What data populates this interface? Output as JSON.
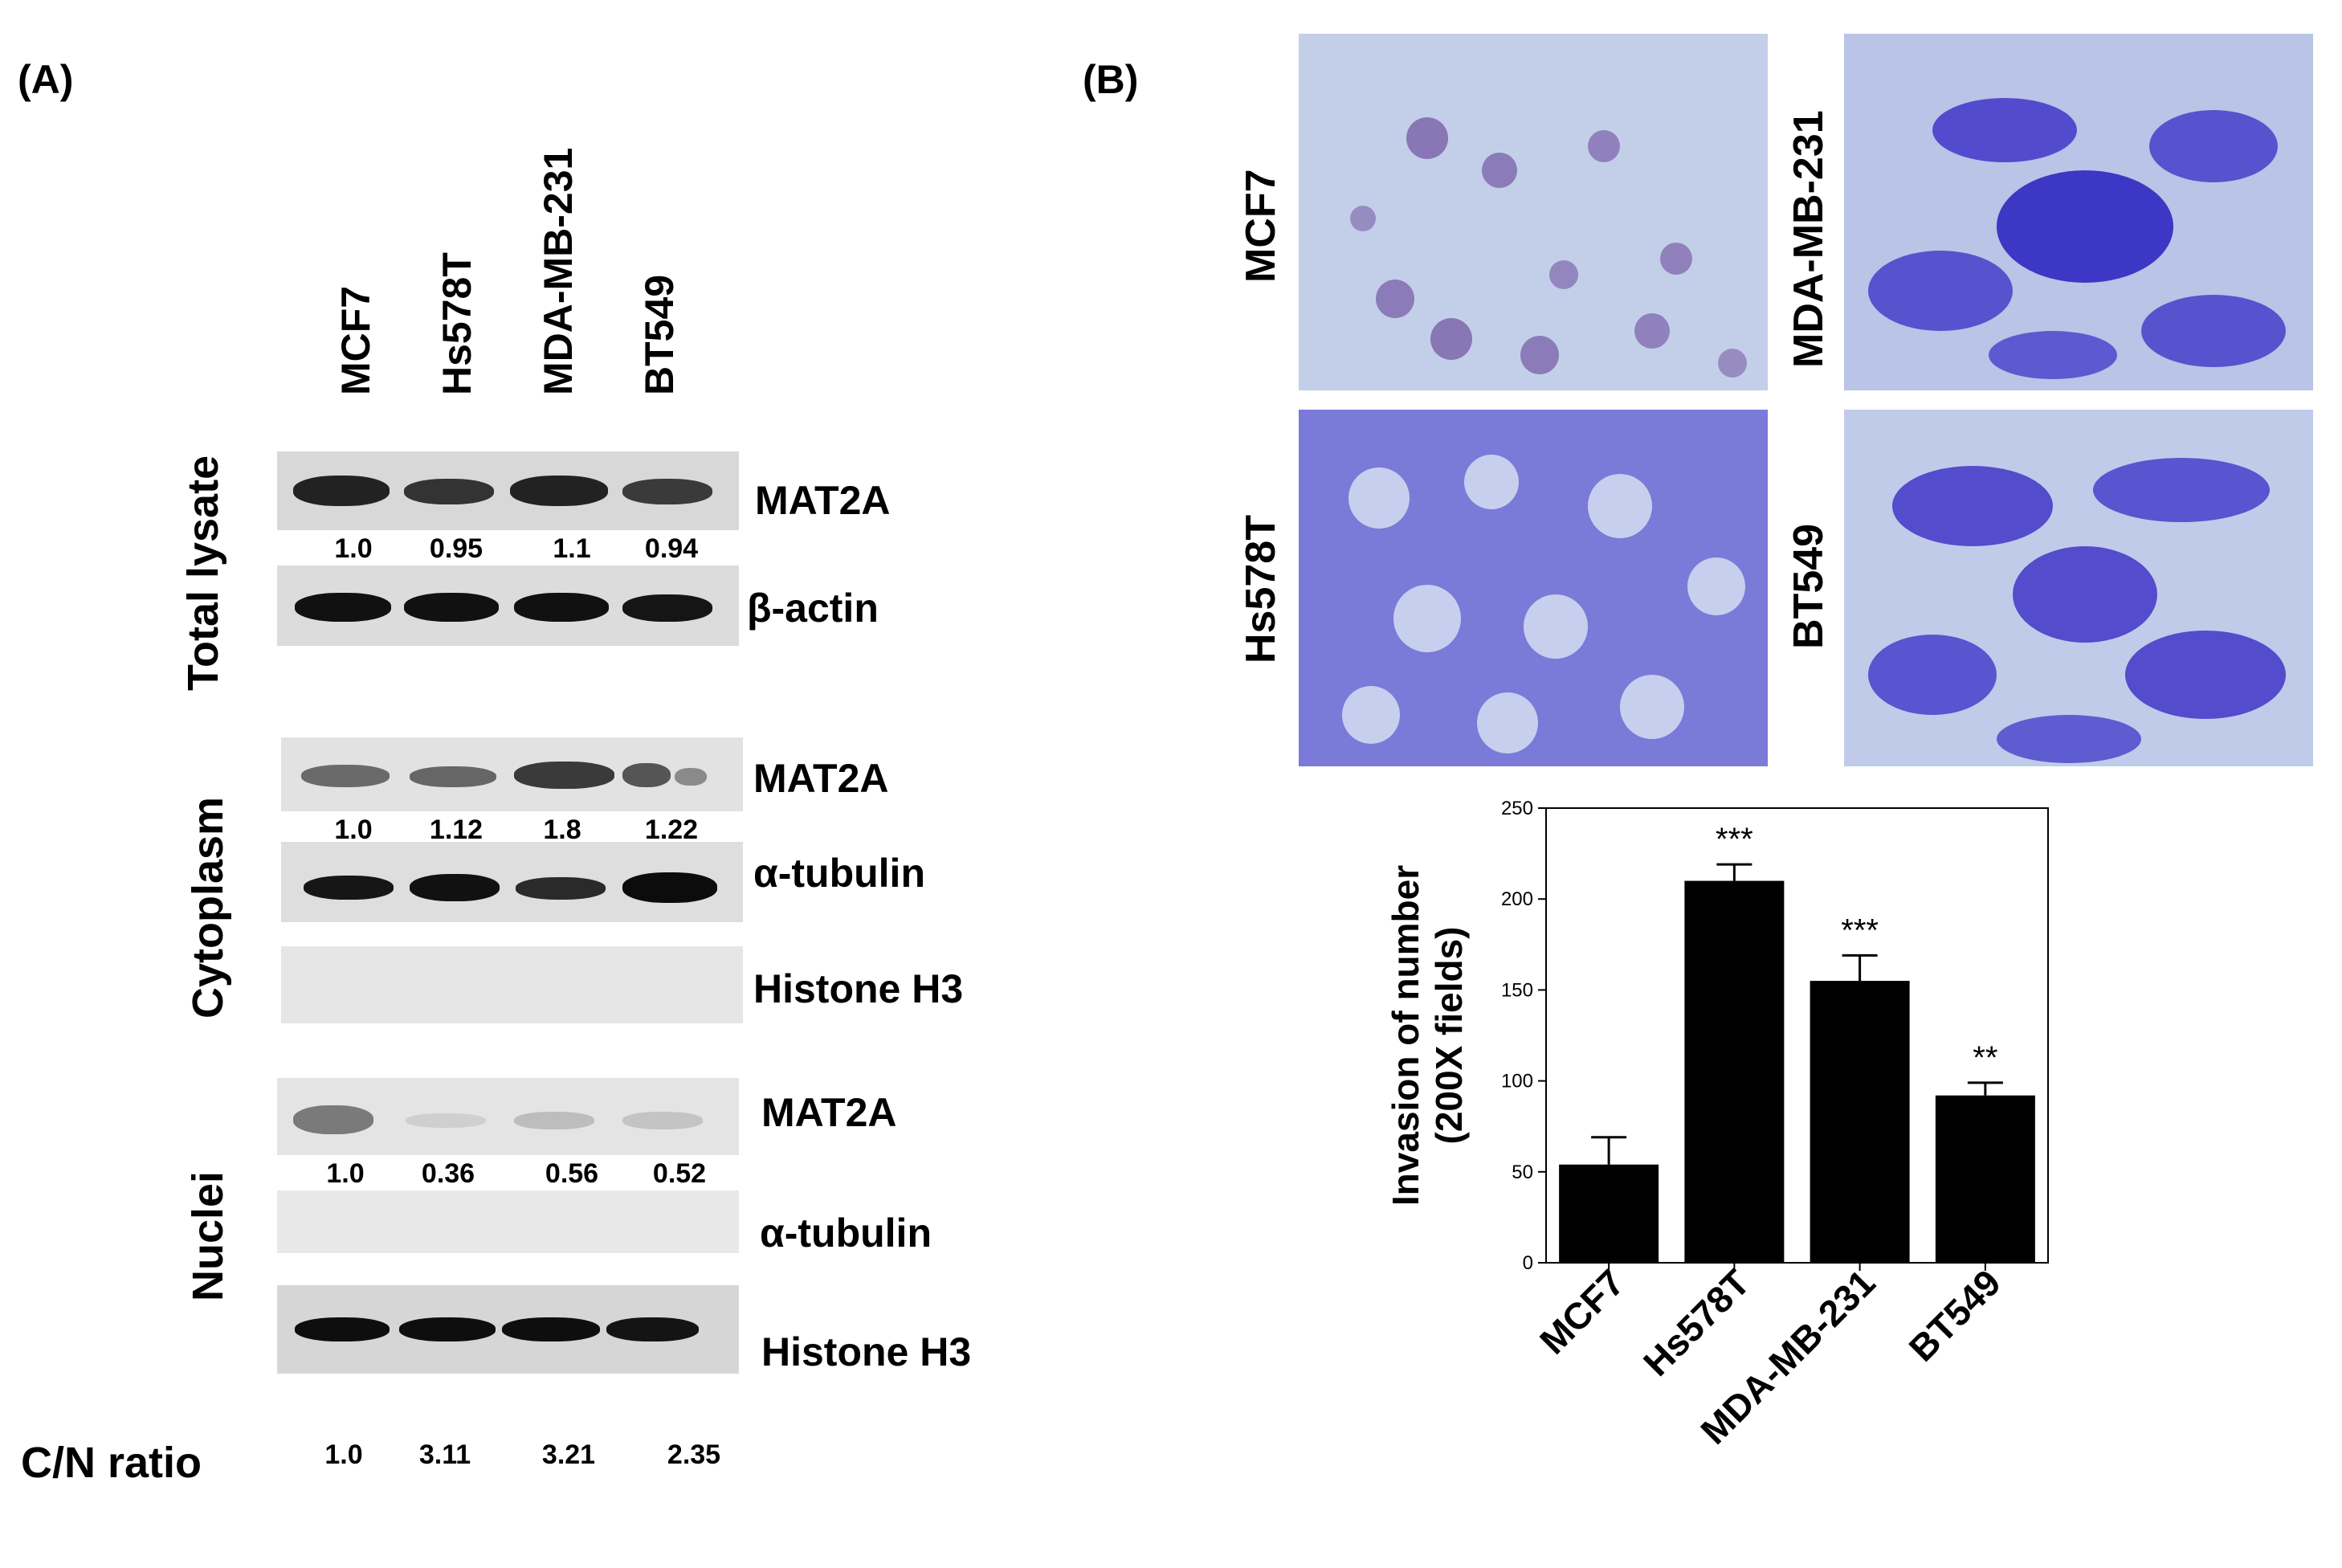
{
  "panel_a": {
    "label": "(A)",
    "lanes": [
      "MCF7",
      "Hs578T",
      "MDA-MB-231",
      "BT549"
    ],
    "groups": {
      "total": "Total lysate",
      "cytoplasm": "Cytoplasm",
      "nuclei": "Nuclei"
    },
    "blots": {
      "total_mat2a": {
        "protein": "MAT2A",
        "quant": [
          "1.0",
          "0.95",
          "1.1",
          "0.94"
        ]
      },
      "total_actin": {
        "protein": "β-actin"
      },
      "cyto_mat2a": {
        "protein": "MAT2A",
        "quant": [
          "1.0",
          "1.12",
          "1.8",
          "1.22"
        ]
      },
      "cyto_tubulin": {
        "protein": "α-tubulin"
      },
      "cyto_h3": {
        "protein": "Histone H3"
      },
      "nuc_mat2a": {
        "protein": "MAT2A",
        "quant": [
          "1.0",
          "0.36",
          "0.56",
          "0.52"
        ]
      },
      "nuc_tubulin": {
        "protein": "α-tubulin"
      },
      "nuc_h3": {
        "protein": "Histone H3"
      }
    },
    "cn_ratio": {
      "label": "C/N ratio",
      "values": [
        "1.0",
        "3.11",
        "3.21",
        "2.35"
      ]
    }
  },
  "panel_b": {
    "label": "(B)",
    "micrographs": [
      "MCF7",
      "MDA-MB-231",
      "Hs578T",
      "BT549"
    ],
    "colors": {
      "stain": "#3f36c8",
      "background": "#b9c4e6",
      "mcf7_stain": "#6a5aa8"
    }
  },
  "chart_data": {
    "type": "bar",
    "categories": [
      "MCF7",
      "Hs578T",
      "MDA-MB-231",
      "BT549"
    ],
    "values": [
      54,
      210,
      155,
      92
    ],
    "errors": [
      15,
      9,
      14,
      7
    ],
    "significance": [
      "",
      "***",
      "***",
      "**"
    ],
    "ylabel_line1": "Invasion of number",
    "ylabel_line2": "(200X fields)",
    "ylim": [
      0,
      250
    ],
    "yticks": [
      "0",
      "50",
      "100",
      "150",
      "200",
      "250"
    ],
    "bar_color": "#000000",
    "grid": false
  }
}
